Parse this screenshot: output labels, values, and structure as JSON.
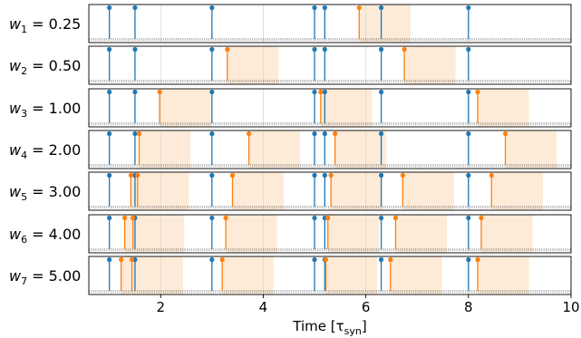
{
  "chart_data": {
    "type": "spike-raster",
    "xlabel": "Time [τ_syn]",
    "xlim": [
      0.6,
      10
    ],
    "xticks": [
      2,
      4,
      6,
      8,
      10
    ],
    "grid": true,
    "colors": {
      "input": "#1f77b4",
      "output": "#ff7f0e",
      "window": "#fdebd8"
    },
    "window_length": 1.0,
    "input_spikes": [
      1.0,
      1.5,
      3.0,
      5.0,
      5.2,
      6.3,
      8.0
    ],
    "rows": [
      {
        "w_sub": "1",
        "w_val": "0.25",
        "outputs": [
          5.87
        ]
      },
      {
        "w_sub": "2",
        "w_val": "0.50",
        "outputs": [
          3.3,
          6.75
        ]
      },
      {
        "w_sub": "3",
        "w_val": "1.00",
        "outputs": [
          1.98,
          5.12,
          8.18
        ]
      },
      {
        "w_sub": "4",
        "w_val": "2.00",
        "outputs": [
          1.58,
          3.72,
          5.4,
          8.72
        ]
      },
      {
        "w_sub": "5",
        "w_val": "3.00",
        "outputs": [
          1.42,
          1.55,
          3.4,
          5.32,
          6.72,
          8.45
        ]
      },
      {
        "w_sub": "6",
        "w_val": "4.00",
        "outputs": [
          1.3,
          1.46,
          3.27,
          5.26,
          6.58,
          8.25
        ]
      },
      {
        "w_sub": "7",
        "w_val": "5.00",
        "outputs": [
          1.23,
          1.44,
          3.2,
          5.22,
          6.48,
          8.18
        ]
      }
    ]
  }
}
